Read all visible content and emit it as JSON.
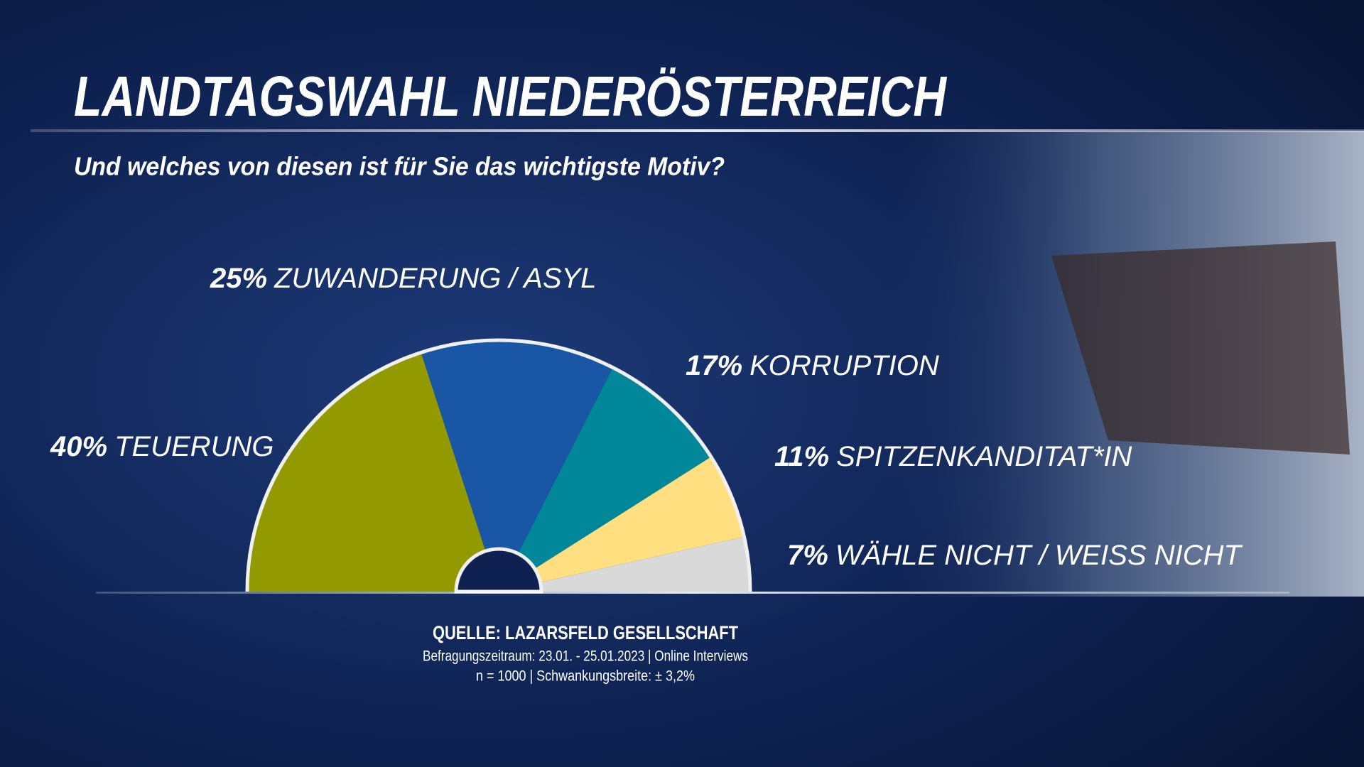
{
  "chart_data": {
    "type": "pie",
    "half": true,
    "title": "LANDTAGSWAHL NIEDERÖSTERREICH",
    "subtitle": "Und welches von diesen ist für Sie das wichtigste Motiv?",
    "categories": [
      "TEUERUNG",
      "ZUWANDERUNG / ASYL",
      "KORRUPTION",
      "SPITZENKANDITAT*IN",
      "WÄHLE NICHT / WEISS NICHT"
    ],
    "values": [
      40,
      25,
      17,
      11,
      7
    ],
    "value_labels": [
      "40%",
      "25%",
      "17%",
      "11%",
      "7%"
    ],
    "colors": [
      "#939a00",
      "#1a56a6",
      "#00889a",
      "#ffdf80",
      "#d9d9d9"
    ]
  },
  "source": {
    "title": "QUELLE:  LAZARSFELD GESELLSCHAFT",
    "period": "Befragungszeitraum: 23.01. - 25.01.2023 | Online Interviews",
    "sample": "n = 1000 |  Schwankungsbreite: ± 3,2%"
  }
}
